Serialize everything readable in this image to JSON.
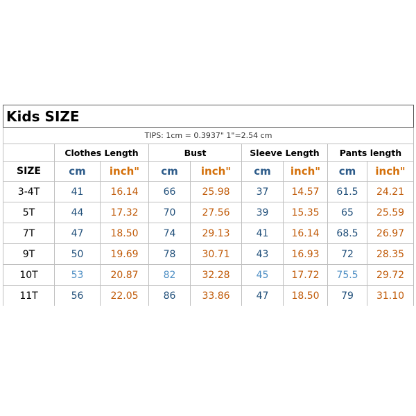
{
  "title": "Kids SIZE",
  "tips": "TIPS: 1cm = 0.3937\"    1\"=2.54 cm",
  "size_header": "SIZE",
  "unit_cm": "cm",
  "unit_inch": "inch\"",
  "groups": [
    "Clothes Length",
    "Bust",
    "Sleeve Length",
    "Pants length"
  ],
  "rows": [
    {
      "size": "3-4T",
      "clothes_cm": "41",
      "clothes_in": "16.14",
      "bust_cm": "66",
      "bust_in": "25.98",
      "sleeve_cm": "37",
      "sleeve_in": "14.57",
      "pants_cm": "61.5",
      "pants_in": "24.21"
    },
    {
      "size": "5T",
      "clothes_cm": "44",
      "clothes_in": "17.32",
      "bust_cm": "70",
      "bust_in": "27.56",
      "sleeve_cm": "39",
      "sleeve_in": "15.35",
      "pants_cm": "65",
      "pants_in": "25.59"
    },
    {
      "size": "7T",
      "clothes_cm": "47",
      "clothes_in": "18.50",
      "bust_cm": "74",
      "bust_in": "29.13",
      "sleeve_cm": "41",
      "sleeve_in": "16.14",
      "pants_cm": "68.5",
      "pants_in": "26.97"
    },
    {
      "size": "9T",
      "clothes_cm": "50",
      "clothes_in": "19.69",
      "bust_cm": "78",
      "bust_in": "30.71",
      "sleeve_cm": "43",
      "sleeve_in": "16.93",
      "pants_cm": "72",
      "pants_in": "28.35"
    },
    {
      "size": "10T",
      "clothes_cm": "53",
      "clothes_in": "20.87",
      "bust_cm": "82",
      "bust_in": "32.28",
      "sleeve_cm": "45",
      "sleeve_in": "17.72",
      "pants_cm": "75.5",
      "pants_in": "29.72"
    },
    {
      "size": "11T",
      "clothes_cm": "56",
      "clothes_in": "22.05",
      "bust_cm": "86",
      "bust_in": "33.86",
      "sleeve_cm": "47",
      "sleeve_in": "18.50",
      "pants_cm": "79",
      "pants_in": "31.10"
    }
  ],
  "colors": {
    "cm": "#1f4e79",
    "cm_light": "#4f8fc4",
    "inch": "#c05a08",
    "border": "#bfbfbf"
  }
}
